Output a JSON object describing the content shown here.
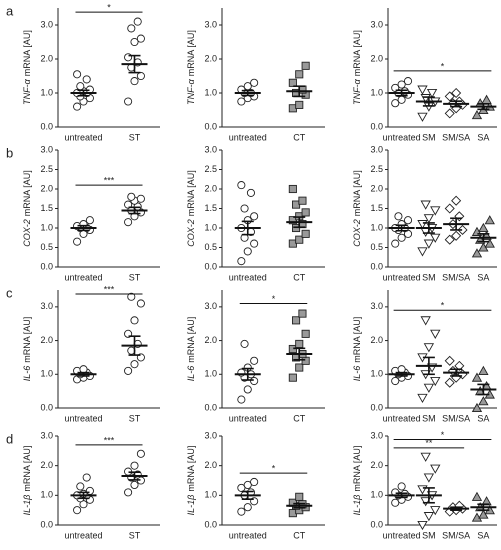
{
  "chart_data": [
    {
      "type": "dotplot",
      "panel": "a",
      "gene": "TNF-α",
      "unit": "mRNA [AU]",
      "ylim": [
        0,
        3.5
      ],
      "yticks": [
        {
          "value": 0,
          "label": "0.0"
        },
        {
          "value": 1,
          "label": "1.0"
        },
        {
          "value": 2,
          "label": "2.0"
        },
        {
          "value": 3,
          "label": "3.0"
        }
      ],
      "categories": [
        "untreated",
        "ST"
      ],
      "markers": [
        "circle",
        "circle"
      ],
      "colors": [
        "#ffffff",
        "#ffffff"
      ],
      "values": [
        [
          0.6,
          0.75,
          0.85,
          0.9,
          1.0,
          1.0,
          1.05,
          1.1,
          1.2,
          1.4,
          1.55
        ],
        [
          0.75,
          1.35,
          1.5,
          1.75,
          1.9,
          2.05,
          2.5,
          2.6,
          2.9,
          3.1
        ]
      ],
      "means": [
        1.0,
        1.85
      ],
      "sems": [
        0.08,
        0.25
      ],
      "significance": [
        {
          "pair": [
            0,
            1
          ],
          "label": "*"
        }
      ]
    },
    {
      "type": "dotplot",
      "gene": "TNF-α",
      "unit": "mRNA [AU]",
      "ylim": [
        0,
        3.5
      ],
      "yticks": [
        {
          "value": 0,
          "label": "0.0"
        },
        {
          "value": 1,
          "label": "1.0"
        },
        {
          "value": 2,
          "label": "2.0"
        },
        {
          "value": 3,
          "label": "3.0"
        }
      ],
      "categories": [
        "untreated",
        "CT"
      ],
      "markers": [
        "circle",
        "square"
      ],
      "colors": [
        "#ffffff",
        "#999999"
      ],
      "values": [
        [
          0.75,
          0.85,
          0.9,
          1.0,
          1.0,
          1.1,
          1.2,
          1.3
        ],
        [
          0.55,
          0.65,
          0.95,
          1.0,
          1.1,
          1.3,
          1.55,
          1.8
        ]
      ],
      "means": [
        1.0,
        1.05
      ],
      "sems": [
        0.07,
        0.15
      ],
      "significance": []
    },
    {
      "type": "dotplot",
      "gene": "TNF-α",
      "unit": "mRNA [AU]",
      "ylim": [
        0,
        3.5
      ],
      "yticks": [
        {
          "value": 0,
          "label": "0.0"
        },
        {
          "value": 1,
          "label": "1.0"
        },
        {
          "value": 2,
          "label": "2.0"
        },
        {
          "value": 3,
          "label": "3.0"
        }
      ],
      "categories": [
        "untreated",
        "SM",
        "SM/SA",
        "SA"
      ],
      "markers": [
        "circle",
        "tridown",
        "diamond",
        "triup"
      ],
      "colors": [
        "#ffffff",
        "#ffffff",
        "#ffffff",
        "#999999"
      ],
      "values": [
        [
          0.7,
          0.8,
          0.95,
          1.0,
          1.05,
          1.15,
          1.25,
          1.35
        ],
        [
          0.3,
          0.6,
          0.75,
          0.85,
          1.0,
          1.1
        ],
        [
          0.4,
          0.55,
          0.65,
          0.7,
          0.75,
          0.9,
          1.0
        ],
        [
          0.35,
          0.5,
          0.6,
          0.7,
          0.8
        ]
      ],
      "means": [
        1.0,
        0.75,
        0.68,
        0.6
      ],
      "sems": [
        0.08,
        0.13,
        0.08,
        0.08
      ],
      "significance": [
        {
          "pair": [
            0,
            3
          ],
          "label": "*"
        }
      ]
    },
    {
      "type": "dotplot",
      "panel": "b",
      "gene": "COX-2",
      "unit": "mRNA [AU]",
      "ylim": [
        0,
        3.0
      ],
      "yticks": [
        {
          "value": 0,
          "label": "0.0"
        },
        {
          "value": 0.5,
          "label": "0.5"
        },
        {
          "value": 1,
          "label": "1.0"
        },
        {
          "value": 1.5,
          "label": "1.5"
        },
        {
          "value": 2,
          "label": "2.0"
        },
        {
          "value": 2.5,
          "label": "2.5"
        },
        {
          "value": 3,
          "label": "3.0"
        }
      ],
      "categories": [
        "untreated",
        "ST"
      ],
      "markers": [
        "circle",
        "circle"
      ],
      "colors": [
        "#ffffff",
        "#ffffff"
      ],
      "values": [
        [
          0.65,
          0.85,
          0.95,
          1.0,
          1.0,
          1.05,
          1.1,
          1.2
        ],
        [
          1.15,
          1.3,
          1.4,
          1.45,
          1.55,
          1.6,
          1.7,
          1.75,
          1.8
        ]
      ],
      "means": [
        1.0,
        1.45
      ],
      "sems": [
        0.06,
        0.08
      ],
      "significance": [
        {
          "pair": [
            0,
            1
          ],
          "label": "***"
        }
      ]
    },
    {
      "type": "dotplot",
      "gene": "COX-2",
      "unit": "mRNA [AU]",
      "ylim": [
        0,
        3.0
      ],
      "yticks": [
        {
          "value": 0,
          "label": "0.0"
        },
        {
          "value": 0.5,
          "label": "0.5"
        },
        {
          "value": 1,
          "label": "1.0"
        },
        {
          "value": 1.5,
          "label": "1.5"
        },
        {
          "value": 2,
          "label": "2.0"
        },
        {
          "value": 2.5,
          "label": "2.5"
        },
        {
          "value": 3,
          "label": "3.0"
        }
      ],
      "categories": [
        "untreated",
        "CT"
      ],
      "markers": [
        "circle",
        "square"
      ],
      "colors": [
        "#ffffff",
        "#999999"
      ],
      "values": [
        [
          0.15,
          0.4,
          0.6,
          0.75,
          0.9,
          1.0,
          1.2,
          1.3,
          1.5,
          1.9,
          2.1
        ],
        [
          0.6,
          0.7,
          0.85,
          1.0,
          1.1,
          1.2,
          1.3,
          1.4,
          1.6,
          1.7,
          2.0
        ]
      ],
      "means": [
        1.0,
        1.15
      ],
      "sems": [
        0.17,
        0.13
      ],
      "significance": []
    },
    {
      "type": "dotplot",
      "gene": "COX-2",
      "unit": "mRNA [AU]",
      "ylim": [
        0,
        3.0
      ],
      "yticks": [
        {
          "value": 0,
          "label": "0.0"
        },
        {
          "value": 0.5,
          "label": "0.5"
        },
        {
          "value": 1,
          "label": "1.0"
        },
        {
          "value": 1.5,
          "label": "1.5"
        },
        {
          "value": 2,
          "label": "2.0"
        },
        {
          "value": 2.5,
          "label": "2.5"
        },
        {
          "value": 3,
          "label": "3.0"
        }
      ],
      "categories": [
        "untreated",
        "SM",
        "SM/SA",
        "SA"
      ],
      "markers": [
        "circle",
        "tridown",
        "diamond",
        "triup"
      ],
      "colors": [
        "#ffffff",
        "#ffffff",
        "#ffffff",
        "#999999"
      ],
      "values": [
        [
          0.6,
          0.75,
          0.85,
          0.95,
          1.0,
          1.0,
          1.1,
          1.2,
          1.3
        ],
        [
          0.4,
          0.6,
          0.75,
          0.9,
          1.0,
          1.1,
          1.25,
          1.45,
          1.6
        ],
        [
          0.7,
          0.8,
          0.95,
          1.1,
          1.3,
          1.5,
          1.7
        ],
        [
          0.35,
          0.5,
          0.6,
          0.7,
          0.8,
          0.9,
          1.0,
          1.2
        ]
      ],
      "means": [
        1.0,
        1.0,
        1.1,
        0.75
      ],
      "sems": [
        0.07,
        0.13,
        0.15,
        0.1
      ],
      "significance": []
    },
    {
      "type": "dotplot",
      "panel": "c",
      "gene": "IL-6",
      "unit": "mRNA [AU]",
      "ylim": [
        0,
        3.5
      ],
      "yticks": [
        {
          "value": 0,
          "label": "0.0"
        },
        {
          "value": 1,
          "label": "1.0"
        },
        {
          "value": 2,
          "label": "2.0"
        },
        {
          "value": 3,
          "label": "3.0"
        }
      ],
      "categories": [
        "untreated",
        "ST"
      ],
      "markers": [
        "circle",
        "circle"
      ],
      "colors": [
        "#ffffff",
        "#ffffff"
      ],
      "values": [
        [
          0.85,
          0.9,
          0.95,
          1.0,
          1.05,
          1.1,
          1.15
        ],
        [
          1.1,
          1.3,
          1.5,
          1.7,
          1.9,
          2.2,
          2.6,
          3.1,
          3.3
        ]
      ],
      "means": [
        1.0,
        1.85
      ],
      "sems": [
        0.05,
        0.28
      ],
      "significance": [
        {
          "pair": [
            0,
            1
          ],
          "label": "***"
        }
      ]
    },
    {
      "type": "dotplot",
      "gene": "IL-6",
      "unit": "mRNA [AU]",
      "ylim": [
        0,
        3.5
      ],
      "yticks": [
        {
          "value": 0,
          "label": "0.0"
        },
        {
          "value": 1,
          "label": "1.0"
        },
        {
          "value": 2,
          "label": "2.0"
        },
        {
          "value": 3,
          "label": "3.0"
        }
      ],
      "categories": [
        "untreated",
        "CT"
      ],
      "markers": [
        "circle",
        "square"
      ],
      "colors": [
        "#ffffff",
        "#999999"
      ],
      "values": [
        [
          0.25,
          0.55,
          0.8,
          0.9,
          1.0,
          1.05,
          1.2,
          1.4,
          1.9
        ],
        [
          0.9,
          1.2,
          1.4,
          1.5,
          1.6,
          1.75,
          1.9,
          2.2,
          2.6,
          2.8
        ]
      ],
      "means": [
        1.0,
        1.6
      ],
      "sems": [
        0.17,
        0.17
      ],
      "significance": [
        {
          "pair": [
            0,
            1
          ],
          "label": "*"
        }
      ]
    },
    {
      "type": "dotplot",
      "gene": "IL-6",
      "unit": "mRNA [AU]",
      "ylim": [
        0,
        3.5
      ],
      "yticks": [
        {
          "value": 0,
          "label": "0.0"
        },
        {
          "value": 1,
          "label": "1.0"
        },
        {
          "value": 2,
          "label": "2.0"
        },
        {
          "value": 3,
          "label": "3.0"
        }
      ],
      "categories": [
        "untreated",
        "SM",
        "SM/SA",
        "SA"
      ],
      "markers": [
        "circle",
        "tridown",
        "diamond",
        "triup"
      ],
      "colors": [
        "#ffffff",
        "#ffffff",
        "#ffffff",
        "#999999"
      ],
      "values": [
        [
          0.8,
          0.9,
          0.95,
          1.0,
          1.05,
          1.1,
          1.15
        ],
        [
          0.3,
          0.6,
          0.8,
          1.0,
          1.2,
          1.5,
          1.8,
          2.2,
          2.6
        ],
        [
          0.75,
          0.9,
          1.0,
          1.1,
          1.25,
          1.4
        ],
        [
          0.0,
          0.2,
          0.4,
          0.5,
          0.65,
          0.9,
          1.1
        ]
      ],
      "means": [
        1.0,
        1.25,
        1.05,
        0.55
      ],
      "sems": [
        0.05,
        0.25,
        0.1,
        0.15
      ],
      "significance": [
        {
          "pair": [
            0,
            3
          ],
          "label": "*"
        }
      ]
    },
    {
      "type": "dotplot",
      "panel": "d",
      "gene": "IL-1β",
      "unit": "mRNA [AU]",
      "ylim": [
        0,
        3.0
      ],
      "yticks": [
        {
          "value": 0,
          "label": "0.0"
        },
        {
          "value": 1,
          "label": "1.0"
        },
        {
          "value": 2,
          "label": "2.0"
        },
        {
          "value": 3,
          "label": "3.0"
        }
      ],
      "categories": [
        "untreated",
        "ST"
      ],
      "markers": [
        "circle",
        "circle"
      ],
      "colors": [
        "#ffffff",
        "#ffffff"
      ],
      "values": [
        [
          0.5,
          0.7,
          0.85,
          0.9,
          1.0,
          1.0,
          1.05,
          1.15,
          1.3,
          1.6
        ],
        [
          1.1,
          1.35,
          1.5,
          1.6,
          1.7,
          1.8,
          2.0,
          2.4
        ]
      ],
      "means": [
        1.0,
        1.65
      ],
      "sems": [
        0.1,
        0.13
      ],
      "significance": [
        {
          "pair": [
            0,
            1
          ],
          "label": "***"
        }
      ]
    },
    {
      "type": "dotplot",
      "gene": "IL-1β",
      "unit": "mRNA [AU]",
      "ylim": [
        0,
        3.0
      ],
      "yticks": [
        {
          "value": 0,
          "label": "0.0"
        },
        {
          "value": 1,
          "label": "1.0"
        },
        {
          "value": 2,
          "label": "2.0"
        },
        {
          "value": 3,
          "label": "3.0"
        }
      ],
      "categories": [
        "untreated",
        "CT"
      ],
      "markers": [
        "circle",
        "square"
      ],
      "colors": [
        "#ffffff",
        "#999999"
      ],
      "values": [
        [
          0.45,
          0.6,
          0.8,
          1.0,
          1.1,
          1.25,
          1.35,
          1.45
        ],
        [
          0.4,
          0.5,
          0.6,
          0.65,
          0.7,
          0.75,
          0.95
        ]
      ],
      "means": [
        1.0,
        0.65
      ],
      "sems": [
        0.13,
        0.07
      ],
      "significance": [
        {
          "pair": [
            0,
            1
          ],
          "label": "*"
        }
      ]
    },
    {
      "type": "dotplot",
      "gene": "IL-1β",
      "unit": "mRNA [AU]",
      "ylim": [
        0,
        3.0
      ],
      "yticks": [
        {
          "value": 0,
          "label": "0.0"
        },
        {
          "value": 1,
          "label": "1.0"
        },
        {
          "value": 2,
          "label": "2.0"
        },
        {
          "value": 3,
          "label": "3.0"
        }
      ],
      "categories": [
        "untreated",
        "SM",
        "SM/SA",
        "SA"
      ],
      "markers": [
        "circle",
        "tridown",
        "diamond",
        "triup"
      ],
      "colors": [
        "#ffffff",
        "#ffffff",
        "#ffffff",
        "#999999"
      ],
      "values": [
        [
          0.75,
          0.85,
          0.95,
          1.0,
          1.05,
          1.1,
          1.3
        ],
        [
          0.0,
          0.3,
          0.5,
          0.8,
          1.0,
          1.2,
          1.6,
          1.9,
          2.3
        ],
        [
          0.45,
          0.5,
          0.55,
          0.6,
          0.65
        ],
        [
          0.25,
          0.35,
          0.5,
          0.6,
          0.8,
          0.95
        ]
      ],
      "means": [
        1.0,
        1.0,
        0.55,
        0.6
      ],
      "sems": [
        0.07,
        0.25,
        0.05,
        0.1
      ],
      "significance": [
        {
          "pair": [
            0,
            2
          ],
          "label": "**"
        },
        {
          "pair": [
            0,
            3
          ],
          "label": "*"
        }
      ]
    }
  ]
}
